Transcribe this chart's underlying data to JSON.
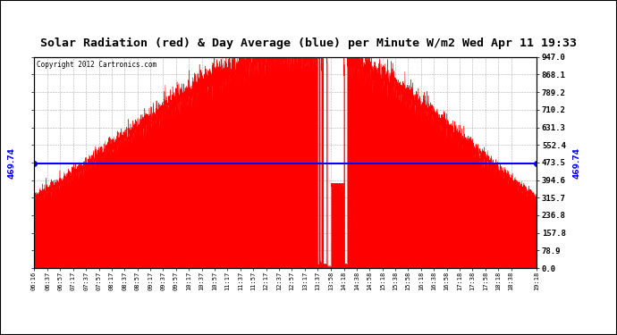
{
  "title": "Solar Radiation (red) & Day Average (blue) per Minute W/m2 Wed Apr 11 19:33",
  "copyright": "Copyright 2012 Cartronics.com",
  "ymin": 0.0,
  "ymax": 947.0,
  "day_average": 469.74,
  "yticks_right": [
    947.0,
    868.1,
    789.2,
    710.2,
    631.3,
    552.4,
    473.5,
    394.6,
    315.7,
    236.8,
    157.8,
    78.9,
    0.0
  ],
  "fill_color": "#FF0000",
  "avg_color": "#0000FF",
  "background_color": "#FFFFFF",
  "grid_color": "#999999",
  "title_bg": "#C0C0C0",
  "x_labels": [
    "06:16",
    "06:37",
    "06:57",
    "07:17",
    "07:37",
    "07:57",
    "08:17",
    "08:37",
    "08:57",
    "09:17",
    "09:37",
    "09:57",
    "10:17",
    "10:37",
    "10:57",
    "11:17",
    "11:37",
    "11:57",
    "12:17",
    "12:37",
    "12:57",
    "13:17",
    "13:37",
    "13:58",
    "14:18",
    "14:38",
    "14:58",
    "15:18",
    "15:38",
    "15:58",
    "16:18",
    "16:38",
    "16:58",
    "17:18",
    "17:38",
    "17:58",
    "18:18",
    "18:38",
    "19:18"
  ],
  "total_minutes": 782
}
